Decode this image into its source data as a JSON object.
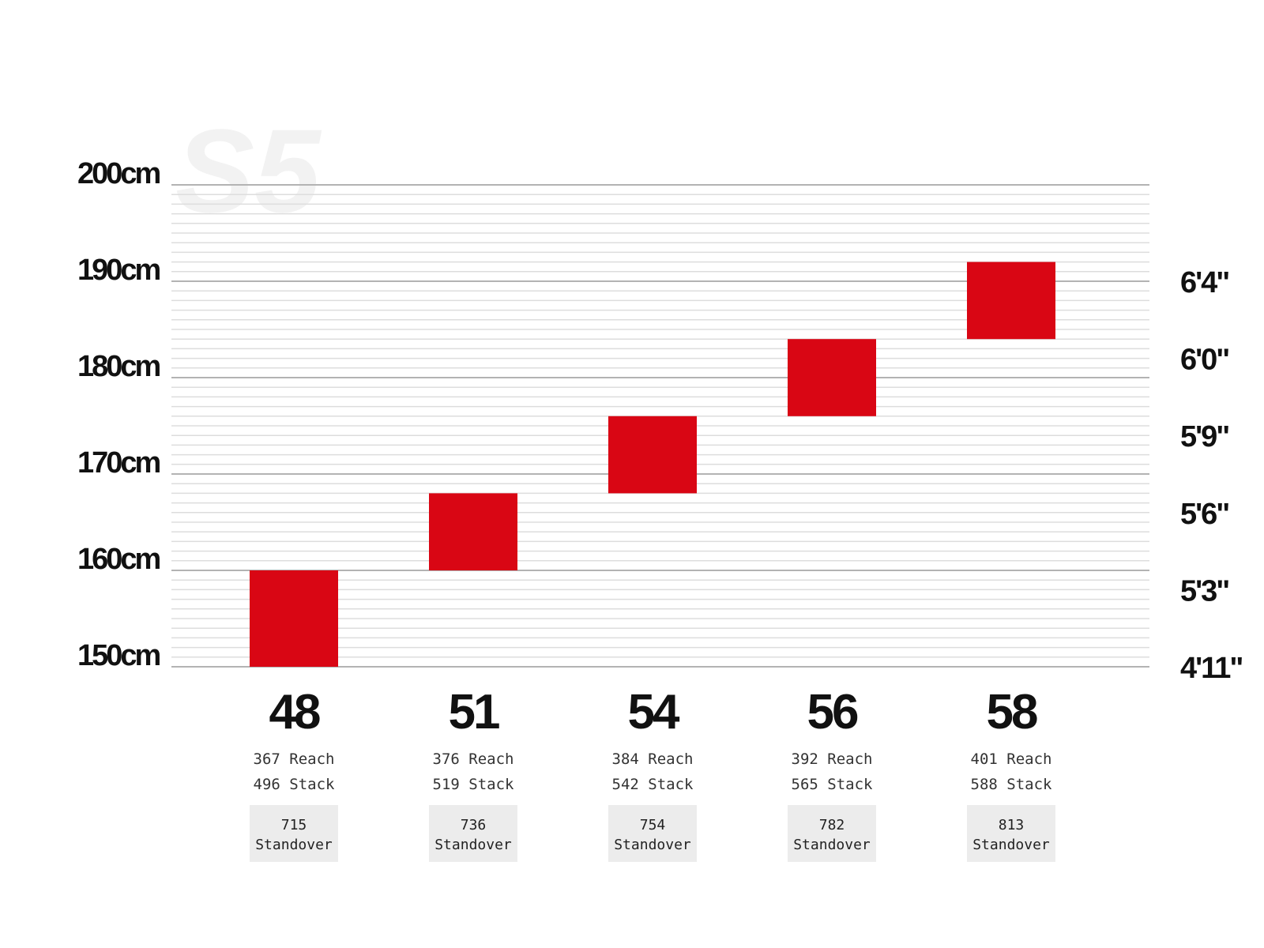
{
  "brand_mark": "S5",
  "colors": {
    "bar": "#d90614",
    "grid_major": "#b3b3b3",
    "grid_minor": "#dddddd",
    "standover_bg": "#ececec"
  },
  "chart_data": {
    "type": "bar",
    "orientation": "vertical-range",
    "ylim": [
      150,
      200
    ],
    "y_unit": "cm",
    "y_ticks": [
      "150cm",
      "160cm",
      "170cm",
      "180cm",
      "190cm",
      "200cm"
    ],
    "y_tick_values": [
      150,
      160,
      170,
      180,
      190,
      200
    ],
    "right_ticks": [
      "4'11\"",
      "5'3\"",
      "5'6\"",
      "5'9\"",
      "6'0\"",
      "6'4\""
    ],
    "right_tick_values": [
      150,
      158,
      166,
      174,
      182,
      190
    ],
    "grid": true,
    "categories": [
      "48",
      "51",
      "54",
      "56",
      "58"
    ],
    "ranges": [
      [
        150,
        160
      ],
      [
        160,
        168
      ],
      [
        168,
        176
      ],
      [
        176,
        184
      ],
      [
        184,
        192
      ]
    ],
    "reach": [
      367,
      376,
      384,
      392,
      401
    ],
    "stack": [
      496,
      519,
      542,
      565,
      588
    ],
    "standover": [
      715,
      736,
      754,
      782,
      813
    ],
    "reach_label": "Reach",
    "stack_label": "Stack",
    "standover_label": "Standover"
  }
}
